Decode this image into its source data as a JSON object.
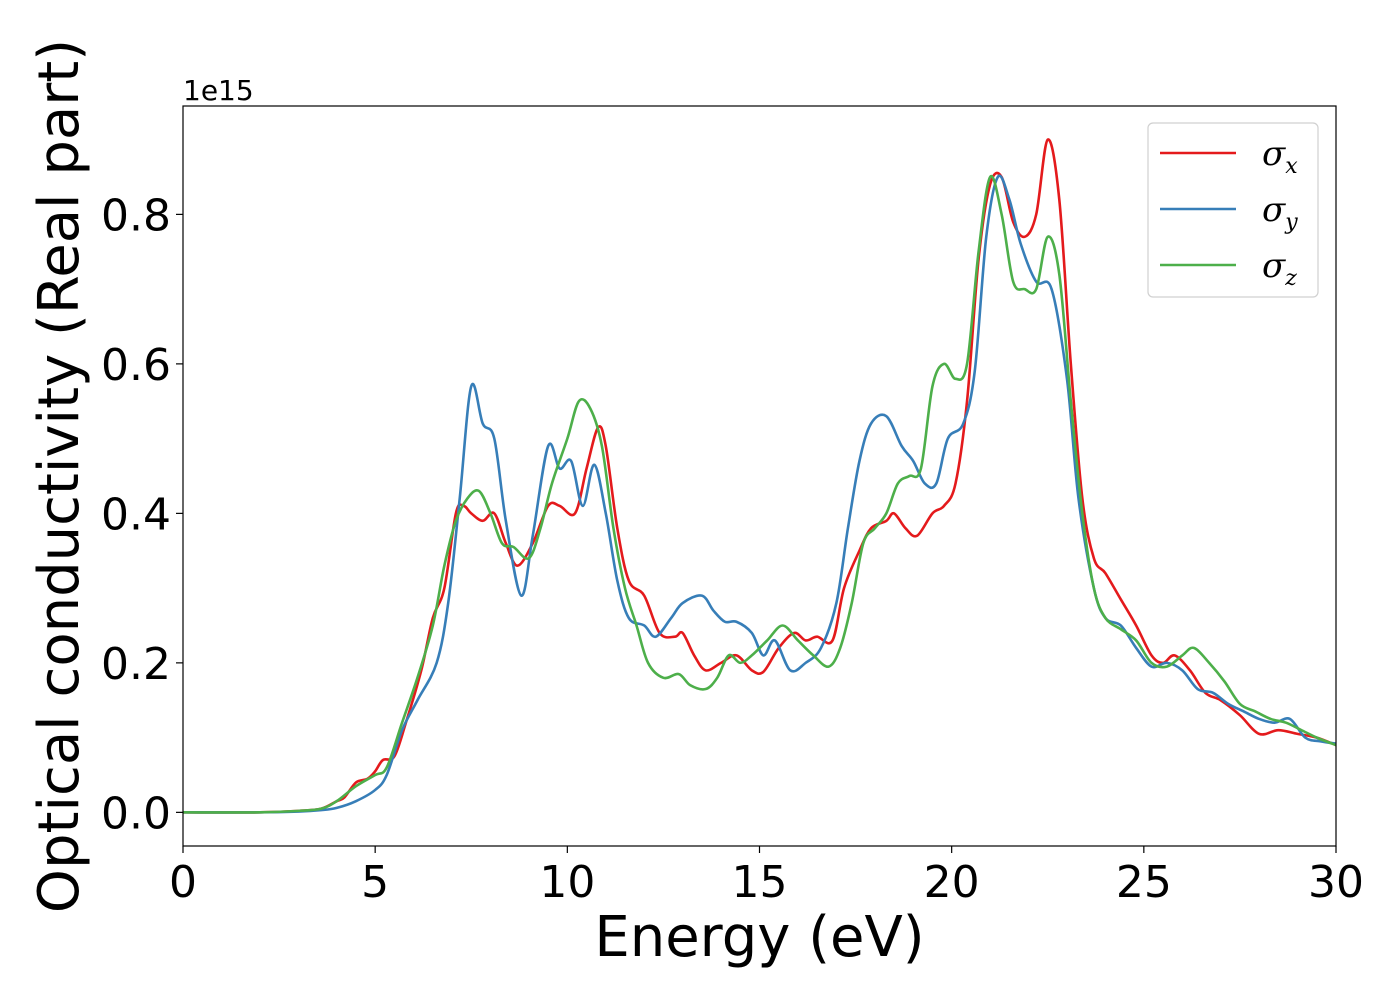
{
  "chart_data": {
    "type": "line",
    "xlabel": "Energy (eV)",
    "ylabel": "Optical conductivity (Real part)",
    "y_offset_label": "1e15",
    "xlim": [
      0,
      30
    ],
    "ylim": [
      -0.045,
      0.945
    ],
    "x_ticks": [
      0,
      5,
      10,
      15,
      20,
      25,
      30
    ],
    "x_tick_labels": [
      "0",
      "5",
      "10",
      "15",
      "20",
      "25",
      "30"
    ],
    "y_ticks": [
      0.0,
      0.2,
      0.4,
      0.6,
      0.8
    ],
    "y_tick_labels": [
      "0.0",
      "0.2",
      "0.4",
      "0.6",
      "0.8"
    ],
    "grid": false,
    "legend_position": "top-right",
    "series": [
      {
        "name": "σ_x",
        "symbol": "σ",
        "subscript": "x",
        "color": "#e41a1c",
        "points": [
          [
            0,
            0
          ],
          [
            2,
            0
          ],
          [
            3,
            0.002
          ],
          [
            3.6,
            0.005
          ],
          [
            4,
            0.015
          ],
          [
            4.2,
            0.02
          ],
          [
            4.5,
            0.04
          ],
          [
            4.8,
            0.045
          ],
          [
            5,
            0.055
          ],
          [
            5.2,
            0.07
          ],
          [
            5.5,
            0.075
          ],
          [
            5.8,
            0.12
          ],
          [
            6.2,
            0.19
          ],
          [
            6.5,
            0.26
          ],
          [
            6.8,
            0.3
          ],
          [
            7.1,
            0.4
          ],
          [
            7.3,
            0.41
          ],
          [
            7.5,
            0.4
          ],
          [
            7.8,
            0.39
          ],
          [
            8.1,
            0.4
          ],
          [
            8.4,
            0.36
          ],
          [
            8.7,
            0.33
          ],
          [
            9.1,
            0.36
          ],
          [
            9.5,
            0.41
          ],
          [
            9.8,
            0.41
          ],
          [
            10.2,
            0.4
          ],
          [
            10.5,
            0.46
          ],
          [
            10.8,
            0.515
          ],
          [
            11,
            0.49
          ],
          [
            11.3,
            0.38
          ],
          [
            11.6,
            0.31
          ],
          [
            12,
            0.29
          ],
          [
            12.4,
            0.24
          ],
          [
            12.8,
            0.235
          ],
          [
            13,
            0.24
          ],
          [
            13.3,
            0.21
          ],
          [
            13.6,
            0.19
          ],
          [
            14,
            0.2
          ],
          [
            14.4,
            0.21
          ],
          [
            14.8,
            0.19
          ],
          [
            15.1,
            0.188
          ],
          [
            15.5,
            0.22
          ],
          [
            15.9,
            0.24
          ],
          [
            16.2,
            0.23
          ],
          [
            16.5,
            0.235
          ],
          [
            16.9,
            0.23
          ],
          [
            17.2,
            0.3
          ],
          [
            17.6,
            0.35
          ],
          [
            17.9,
            0.38
          ],
          [
            18.3,
            0.39
          ],
          [
            18.5,
            0.4
          ],
          [
            18.8,
            0.38
          ],
          [
            19.1,
            0.37
          ],
          [
            19.5,
            0.4
          ],
          [
            19.8,
            0.41
          ],
          [
            20.1,
            0.44
          ],
          [
            20.4,
            0.55
          ],
          [
            20.7,
            0.74
          ],
          [
            21,
            0.84
          ],
          [
            21.3,
            0.85
          ],
          [
            21.6,
            0.79
          ],
          [
            21.9,
            0.77
          ],
          [
            22.2,
            0.8
          ],
          [
            22.5,
            0.9
          ],
          [
            22.8,
            0.82
          ],
          [
            23.1,
            0.6
          ],
          [
            23.4,
            0.42
          ],
          [
            23.7,
            0.34
          ],
          [
            24,
            0.32
          ],
          [
            24.4,
            0.285
          ],
          [
            24.8,
            0.25
          ],
          [
            25.2,
            0.21
          ],
          [
            25.5,
            0.2
          ],
          [
            25.8,
            0.21
          ],
          [
            26.2,
            0.19
          ],
          [
            26.6,
            0.16
          ],
          [
            27,
            0.15
          ],
          [
            27.5,
            0.13
          ],
          [
            28,
            0.105
          ],
          [
            28.5,
            0.11
          ],
          [
            29,
            0.105
          ],
          [
            29.5,
            0.1
          ],
          [
            30,
            0.09
          ]
        ]
      },
      {
        "name": "σ_y",
        "symbol": "σ",
        "subscript": "y",
        "color": "#377eb8",
        "points": [
          [
            0,
            0
          ],
          [
            2,
            0
          ],
          [
            3,
            0.001
          ],
          [
            3.6,
            0.003
          ],
          [
            4,
            0.006
          ],
          [
            4.5,
            0.015
          ],
          [
            5,
            0.03
          ],
          [
            5.3,
            0.05
          ],
          [
            5.7,
            0.11
          ],
          [
            6.1,
            0.15
          ],
          [
            6.6,
            0.2
          ],
          [
            6.9,
            0.28
          ],
          [
            7.2,
            0.42
          ],
          [
            7.5,
            0.57
          ],
          [
            7.8,
            0.52
          ],
          [
            8.1,
            0.5
          ],
          [
            8.4,
            0.39
          ],
          [
            8.8,
            0.29
          ],
          [
            9.1,
            0.37
          ],
          [
            9.5,
            0.49
          ],
          [
            9.8,
            0.46
          ],
          [
            10.1,
            0.47
          ],
          [
            10.4,
            0.41
          ],
          [
            10.7,
            0.465
          ],
          [
            11,
            0.4
          ],
          [
            11.3,
            0.31
          ],
          [
            11.6,
            0.26
          ],
          [
            12,
            0.25
          ],
          [
            12.3,
            0.235
          ],
          [
            12.7,
            0.26
          ],
          [
            13,
            0.28
          ],
          [
            13.5,
            0.29
          ],
          [
            13.8,
            0.27
          ],
          [
            14.1,
            0.255
          ],
          [
            14.4,
            0.255
          ],
          [
            14.8,
            0.24
          ],
          [
            15.1,
            0.21
          ],
          [
            15.4,
            0.23
          ],
          [
            15.8,
            0.19
          ],
          [
            16.2,
            0.2
          ],
          [
            16.6,
            0.22
          ],
          [
            17,
            0.28
          ],
          [
            17.3,
            0.38
          ],
          [
            17.6,
            0.47
          ],
          [
            17.9,
            0.52
          ],
          [
            18.3,
            0.53
          ],
          [
            18.7,
            0.49
          ],
          [
            19,
            0.47
          ],
          [
            19.3,
            0.44
          ],
          [
            19.6,
            0.44
          ],
          [
            19.9,
            0.5
          ],
          [
            20.3,
            0.52
          ],
          [
            20.6,
            0.59
          ],
          [
            20.9,
            0.77
          ],
          [
            21.2,
            0.85
          ],
          [
            21.5,
            0.82
          ],
          [
            21.8,
            0.76
          ],
          [
            22.2,
            0.71
          ],
          [
            22.6,
            0.7
          ],
          [
            23,
            0.58
          ],
          [
            23.3,
            0.42
          ],
          [
            23.7,
            0.3
          ],
          [
            24,
            0.26
          ],
          [
            24.4,
            0.25
          ],
          [
            24.8,
            0.22
          ],
          [
            25.2,
            0.195
          ],
          [
            25.6,
            0.2
          ],
          [
            26,
            0.19
          ],
          [
            26.4,
            0.165
          ],
          [
            26.8,
            0.16
          ],
          [
            27.2,
            0.145
          ],
          [
            27.6,
            0.135
          ],
          [
            28,
            0.125
          ],
          [
            28.4,
            0.12
          ],
          [
            28.8,
            0.125
          ],
          [
            29.2,
            0.1
          ],
          [
            29.6,
            0.095
          ],
          [
            30,
            0.092
          ]
        ]
      },
      {
        "name": "σ_z",
        "symbol": "σ",
        "subscript": "z",
        "color": "#4daf4a",
        "points": [
          [
            0,
            0
          ],
          [
            2,
            0
          ],
          [
            3,
            0.002
          ],
          [
            3.6,
            0.005
          ],
          [
            4,
            0.015
          ],
          [
            4.5,
            0.035
          ],
          [
            5,
            0.05
          ],
          [
            5.3,
            0.06
          ],
          [
            5.7,
            0.12
          ],
          [
            6.1,
            0.18
          ],
          [
            6.5,
            0.25
          ],
          [
            6.8,
            0.33
          ],
          [
            7.1,
            0.39
          ],
          [
            7.4,
            0.42
          ],
          [
            7.7,
            0.43
          ],
          [
            8,
            0.4
          ],
          [
            8.3,
            0.36
          ],
          [
            8.6,
            0.355
          ],
          [
            9,
            0.34
          ],
          [
            9.3,
            0.38
          ],
          [
            9.6,
            0.44
          ],
          [
            10,
            0.5
          ],
          [
            10.3,
            0.55
          ],
          [
            10.6,
            0.54
          ],
          [
            10.9,
            0.49
          ],
          [
            11.2,
            0.38
          ],
          [
            11.5,
            0.3
          ],
          [
            11.8,
            0.25
          ],
          [
            12.1,
            0.2
          ],
          [
            12.5,
            0.18
          ],
          [
            12.9,
            0.185
          ],
          [
            13.2,
            0.17
          ],
          [
            13.6,
            0.165
          ],
          [
            13.9,
            0.18
          ],
          [
            14.2,
            0.21
          ],
          [
            14.5,
            0.2
          ],
          [
            14.8,
            0.21
          ],
          [
            15.2,
            0.23
          ],
          [
            15.6,
            0.25
          ],
          [
            16,
            0.23
          ],
          [
            16.4,
            0.21
          ],
          [
            16.8,
            0.195
          ],
          [
            17.1,
            0.22
          ],
          [
            17.4,
            0.28
          ],
          [
            17.7,
            0.36
          ],
          [
            18,
            0.38
          ],
          [
            18.3,
            0.4
          ],
          [
            18.6,
            0.44
          ],
          [
            18.9,
            0.45
          ],
          [
            19.2,
            0.46
          ],
          [
            19.5,
            0.57
          ],
          [
            19.8,
            0.6
          ],
          [
            20.1,
            0.58
          ],
          [
            20.4,
            0.6
          ],
          [
            20.7,
            0.75
          ],
          [
            21,
            0.85
          ],
          [
            21.3,
            0.8
          ],
          [
            21.6,
            0.71
          ],
          [
            21.9,
            0.7
          ],
          [
            22.2,
            0.7
          ],
          [
            22.5,
            0.77
          ],
          [
            22.8,
            0.72
          ],
          [
            23.1,
            0.55
          ],
          [
            23.4,
            0.4
          ],
          [
            23.7,
            0.3
          ],
          [
            24,
            0.26
          ],
          [
            24.4,
            0.245
          ],
          [
            24.8,
            0.23
          ],
          [
            25.2,
            0.2
          ],
          [
            25.6,
            0.195
          ],
          [
            26,
            0.21
          ],
          [
            26.3,
            0.22
          ],
          [
            26.7,
            0.2
          ],
          [
            27.1,
            0.175
          ],
          [
            27.5,
            0.145
          ],
          [
            27.9,
            0.135
          ],
          [
            28.3,
            0.125
          ],
          [
            28.7,
            0.12
          ],
          [
            29.1,
            0.11
          ],
          [
            29.5,
            0.1
          ],
          [
            30,
            0.09
          ]
        ]
      }
    ]
  }
}
